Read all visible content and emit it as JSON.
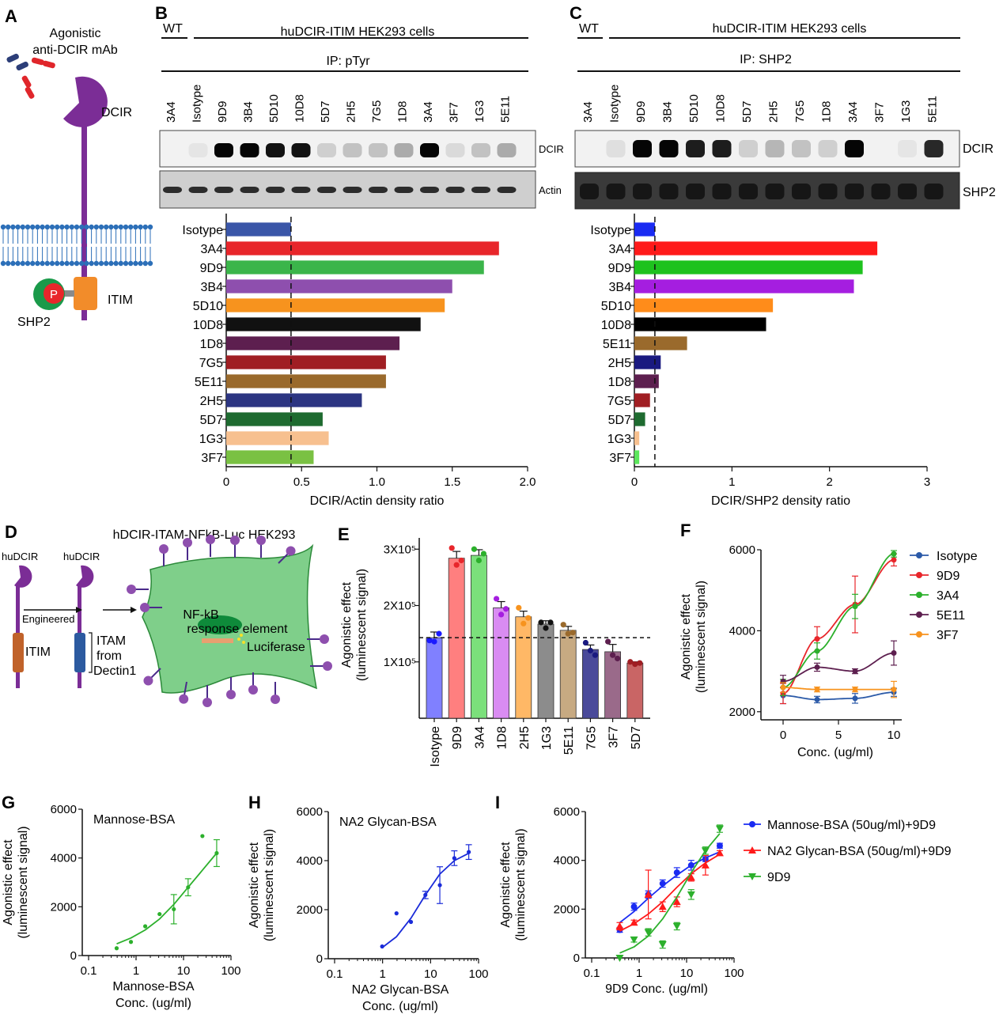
{
  "panels": {
    "A": {
      "letter": "A",
      "mab_label_1": "Agonistic",
      "mab_label_2": "anti-DCIR mAb",
      "dcir": "DCIR",
      "itim": "ITIM",
      "shp2": "SHP2",
      "phospho": "P"
    },
    "B": {
      "letter": "B",
      "wt": "WT",
      "cells": "huDCIR-ITIM HEK293 cells",
      "ip": "IP: pTyr",
      "lanes": [
        "3A4",
        "Isotype",
        "9D9",
        "3B4",
        "5D10",
        "10D8",
        "5D7",
        "2H5",
        "7G5",
        "1D8",
        "3A4",
        "3F7",
        "1G3",
        "5E11"
      ],
      "blot1": "DCIR",
      "blot2": "Actin",
      "xlabel": "DCIR/Actin density ratio"
    },
    "C": {
      "letter": "C",
      "wt": "WT",
      "cells": "huDCIR-ITIM HEK293 cells",
      "ip": "IP: SHP2",
      "lanes": [
        "3A4",
        "Isotype",
        "9D9",
        "3B4",
        "5D10",
        "10D8",
        "5D7",
        "2H5",
        "7G5",
        "1D8",
        "3A4",
        "3F7",
        "1G3",
        "5E11"
      ],
      "blot1": "DCIR",
      "blot2": "SHP2",
      "xlabel": "DCIR/SHP2 density ratio"
    },
    "D": {
      "letter": "D",
      "title": "hDCIR-ITAM-NFkB-Luc HEK293",
      "hudcir1": "huDCIR",
      "hudcir2": "huDCIR",
      "engineered": "Engineered",
      "itim": "ITIM",
      "itam1": "ITAM",
      "itam2": "from",
      "itam3": "Dectin1",
      "nfkb1": "NF-kB",
      "nfkb2": "response element",
      "luciferase": "Luciferase"
    },
    "E": {
      "letter": "E"
    },
    "F": {
      "letter": "F"
    },
    "G": {
      "letter": "G"
    },
    "H": {
      "letter": "H"
    },
    "I": {
      "letter": "I"
    }
  },
  "chart_data": [
    {
      "panel": "B",
      "type": "bar",
      "orientation": "horizontal",
      "categories": [
        "Isotype",
        "3A4",
        "9D9",
        "3B4",
        "5D10",
        "10D8",
        "1D8",
        "7G5",
        "5E11",
        "2H5",
        "5D7",
        "1G3",
        "3F7"
      ],
      "values": [
        0.43,
        1.81,
        1.71,
        1.5,
        1.45,
        1.29,
        1.15,
        1.06,
        1.06,
        0.9,
        0.64,
        0.68,
        0.58
      ],
      "colors": [
        "#3a56a8",
        "#e8262b",
        "#3bb54a",
        "#8e4fae",
        "#f7931e",
        "#111111",
        "#5d1f4f",
        "#a01e23",
        "#9a6a2c",
        "#2c3582",
        "#1e6b30",
        "#f7c08f",
        "#7ac143"
      ],
      "xlabel": "DCIR/Actin density ratio",
      "xlim": [
        0,
        2.0
      ],
      "xticks": [
        "0",
        "0.5",
        "1.0",
        "1.5",
        "2.0"
      ],
      "reference_line": 0.43
    },
    {
      "panel": "C",
      "type": "bar",
      "orientation": "horizontal",
      "categories": [
        "Isotype",
        "3A4",
        "9D9",
        "3B4",
        "5D10",
        "10D8",
        "5E11",
        "2H5",
        "1D8",
        "7G5",
        "5D7",
        "1G3",
        "3F7"
      ],
      "values": [
        0.21,
        2.49,
        2.34,
        2.25,
        1.42,
        1.35,
        0.54,
        0.27,
        0.25,
        0.16,
        0.11,
        0.05,
        0.05
      ],
      "colors": [
        "#1a2bf2",
        "#ff1a1a",
        "#1ec21e",
        "#a51ee0",
        "#ff8c1a",
        "#000000",
        "#9a6a2c",
        "#1a1a80",
        "#5d1f4f",
        "#a01e23",
        "#1e6b30",
        "#f7c08f",
        "#5ce65c"
      ],
      "xlabel": "DCIR/SHP2 density ratio",
      "xlim": [
        0,
        3
      ],
      "xticks": [
        "0",
        "1",
        "2",
        "3"
      ],
      "reference_line": 0.21
    },
    {
      "panel": "E",
      "type": "bar",
      "categories": [
        "Isotype",
        "9D9",
        "3A4",
        "1D8",
        "2H5",
        "1G3",
        "5E11",
        "7G5",
        "3F7",
        "5D7"
      ],
      "values": [
        143000,
        284000,
        289000,
        196000,
        180000,
        167000,
        156000,
        122000,
        118000,
        98000
      ],
      "errors": [
        10000,
        12000,
        10000,
        11000,
        10000,
        6000,
        7000,
        8000,
        13000,
        2000
      ],
      "points": [
        [
          138000,
          136000,
          150000
        ],
        [
          302000,
          272000,
          280000
        ],
        [
          300000,
          280000,
          292000
        ],
        [
          212000,
          184000,
          194000
        ],
        [
          196000,
          168000,
          178000
        ],
        [
          170000,
          160000,
          170000
        ],
        [
          166000,
          150000,
          152000
        ],
        [
          134000,
          120000,
          112000
        ],
        [
          136000,
          112000,
          106000
        ],
        [
          100000,
          96000,
          98000
        ]
      ],
      "colors": [
        "#8080ff",
        "#ff7f7f",
        "#7be07b",
        "#d98cf2",
        "#ffb866",
        "#8c8c8c",
        "#c7aa82",
        "#4a4a9a",
        "#9a6a8a",
        "#c96565"
      ],
      "point_colors": [
        "#1a1aff",
        "#e8262b",
        "#2cb02c",
        "#a51ee0",
        "#f7931e",
        "#111111",
        "#9a6a2c",
        "#1a1a80",
        "#5d1f4f",
        "#a01e23"
      ],
      "ylabel": "Agonistic effect\n(luminescent signal)",
      "ylim": [
        0,
        320000
      ],
      "yticks": [
        100000,
        200000,
        300000
      ],
      "ytick_labels": [
        "1X10⁵",
        "2X10⁵",
        "3X10⁵"
      ],
      "reference_line": 143000
    },
    {
      "panel": "F",
      "type": "line",
      "x_display": [
        0,
        0.5,
        1.25,
        10
      ],
      "x_tick_labels": [
        "0",
        "5",
        "10"
      ],
      "xlabel": "Conc. (ug/ml)",
      "ylabel": "Agonistic effect\n(luminescent signal)",
      "ylim": [
        1800,
        6000
      ],
      "yticks": [
        2000,
        4000,
        6000
      ],
      "legend_position": "top-right",
      "series": [
        {
          "name": "Isotype",
          "color": "#2b5aa8",
          "x": [
            0,
            1,
            2,
            3
          ],
          "y": [
            2400,
            2300,
            2330,
            2480
          ],
          "err": [
            200,
            80,
            120,
            100
          ]
        },
        {
          "name": "9D9",
          "color": "#e8262b",
          "x": [
            0,
            1,
            2,
            3
          ],
          "y": [
            2450,
            3800,
            4650,
            5750
          ],
          "err": [
            250,
            300,
            700,
            150
          ]
        },
        {
          "name": "3A4",
          "color": "#2cb02c",
          "x": [
            0,
            1,
            2,
            3
          ],
          "y": [
            2600,
            3500,
            4600,
            5900
          ],
          "err": [
            200,
            200,
            300,
            80
          ]
        },
        {
          "name": "5E11",
          "color": "#5d1f4f",
          "x": [
            0,
            1,
            2,
            3
          ],
          "y": [
            2750,
            3100,
            3000,
            3450
          ],
          "err": [
            150,
            100,
            60,
            300
          ]
        },
        {
          "name": "3F7",
          "color": "#f7931e",
          "x": [
            0,
            1,
            2,
            3
          ],
          "y": [
            2600,
            2550,
            2550,
            2550
          ],
          "err": [
            120,
            60,
            60,
            200
          ]
        }
      ]
    },
    {
      "panel": "G",
      "type": "scatter",
      "title": "Mannose-BSA",
      "xscale": "log",
      "xlim": [
        0.1,
        100
      ],
      "x_tick_labels": [
        "0.1",
        "1",
        "10",
        "100"
      ],
      "ylim": [
        0,
        6000
      ],
      "yticks": [
        0,
        2000,
        4000,
        6000
      ],
      "xlabel": "Mannose-BSA\nConc. (ug/ml)",
      "ylabel": "Agonistic effect\n(luminescent signal)",
      "color": "#2cb02c",
      "x": [
        0.39,
        0.78,
        1.56,
        3.13,
        6.25,
        12.5,
        25,
        50
      ],
      "y": [
        300,
        560,
        1200,
        1700,
        1900,
        2800,
        4900,
        4200
      ],
      "err": [
        0,
        0,
        0,
        0,
        600,
        350,
        0,
        550
      ],
      "fit_y": [
        480,
        720,
        1050,
        1500,
        2100,
        2800,
        3500,
        4200
      ]
    },
    {
      "panel": "H",
      "type": "scatter",
      "title": "NA2 Glycan-BSA",
      "xscale": "log",
      "xlim": [
        0.1,
        100
      ],
      "x_tick_labels": [
        "0.1",
        "1",
        "10",
        "100"
      ],
      "ylim": [
        0,
        6000
      ],
      "yticks": [
        0,
        2000,
        4000,
        6000
      ],
      "xlabel": "NA2 Glycan-BSA\nConc. (ug/ml)",
      "ylabel": "Agonistic effect\n(luminescent signal)",
      "color": "#1a2bd9",
      "x": [
        0.98,
        1.95,
        3.9,
        7.8,
        15.6,
        31.25,
        62.5
      ],
      "y": [
        500,
        1850,
        1500,
        2600,
        3000,
        4100,
        4350
      ],
      "err": [
        0,
        0,
        0,
        150,
        750,
        300,
        300
      ],
      "fit_y": [
        450,
        900,
        1650,
        2600,
        3450,
        4000,
        4300
      ]
    },
    {
      "panel": "I",
      "type": "scatter",
      "xscale": "log",
      "xlim": [
        0.1,
        100
      ],
      "x_tick_labels": [
        "0.1",
        "1",
        "10",
        "100"
      ],
      "ylim": [
        0,
        6000
      ],
      "yticks": [
        0,
        2000,
        4000,
        6000
      ],
      "xlabel": "9D9 Conc. (ug/ml)",
      "ylabel": "Agonistic effect\n(luminescent signal)",
      "legend_position": "right",
      "series": [
        {
          "name": "Mannose-BSA (50ug/ml)+9D9",
          "color": "#1a2bf2",
          "marker": "circle",
          "x": [
            0.39,
            0.78,
            1.56,
            3.13,
            6.25,
            12.5,
            25,
            50
          ],
          "y": [
            1150,
            2100,
            2600,
            3050,
            3500,
            3800,
            4050,
            4600
          ],
          "err": [
            100,
            150,
            150,
            150,
            200,
            200,
            100,
            100
          ],
          "fit_y": [
            1450,
            1900,
            2450,
            2950,
            3400,
            3800,
            4100,
            4350
          ]
        },
        {
          "name": "NA2 Glycan-BSA (50ug/ml)+9D9",
          "color": "#ff1a1a",
          "marker": "triangle-up",
          "x": [
            0.39,
            0.78,
            1.56,
            3.13,
            6.25,
            12.5,
            25,
            50
          ],
          "y": [
            1300,
            1450,
            2600,
            2100,
            2300,
            3300,
            3800,
            4300
          ],
          "err": [
            150,
            100,
            1000,
            200,
            200,
            150,
            400,
            100
          ],
          "fit_y": [
            1100,
            1400,
            1800,
            2300,
            2900,
            3450,
            3900,
            4250
          ]
        },
        {
          "name": "9D9",
          "color": "#2cb02c",
          "marker": "triangle-down",
          "x": [
            0.39,
            0.78,
            1.56,
            3.13,
            6.25,
            12.5,
            25,
            50
          ],
          "y": [
            0,
            750,
            1050,
            550,
            1300,
            2600,
            4400,
            5300
          ],
          "err": [
            0,
            100,
            150,
            150,
            150,
            200,
            150,
            150
          ],
          "fit_y": [
            200,
            450,
            900,
            1600,
            2500,
            3500,
            4400,
            5100
          ]
        }
      ]
    }
  ]
}
